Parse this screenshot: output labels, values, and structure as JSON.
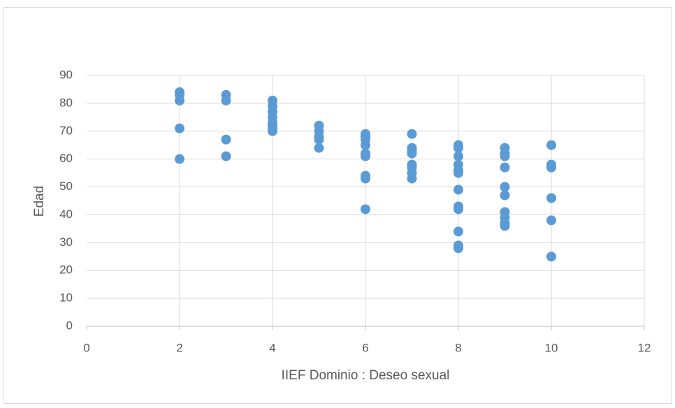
{
  "chart_data": {
    "type": "scatter",
    "xlabel": "IIEF Dominio : Deseo sexual",
    "ylabel": "Edad",
    "x": [
      2,
      2,
      2,
      2,
      2,
      3,
      3,
      3,
      3,
      4,
      4,
      4,
      4,
      4,
      4,
      4,
      4,
      5,
      5,
      5,
      5,
      5,
      6,
      6,
      6,
      6,
      6,
      6,
      6,
      6,
      6,
      7,
      7,
      7,
      7,
      7,
      7,
      7,
      7,
      8,
      8,
      8,
      8,
      8,
      8,
      8,
      8,
      8,
      8,
      8,
      8,
      9,
      9,
      9,
      9,
      9,
      9,
      9,
      9,
      9,
      9,
      10,
      10,
      10,
      10,
      10,
      10
    ],
    "values": [
      84,
      83,
      81,
      71,
      60,
      83,
      81,
      67,
      61,
      81,
      79,
      77,
      75,
      73,
      72,
      71,
      70,
      72,
      70,
      68,
      67,
      64,
      69,
      68,
      67,
      65,
      62,
      61,
      54,
      53,
      42,
      69,
      64,
      63,
      62,
      58,
      57,
      55,
      53,
      65,
      64,
      61,
      58,
      56,
      55,
      49,
      43,
      42,
      34,
      29,
      28,
      64,
      62,
      61,
      57,
      50,
      47,
      41,
      39,
      37,
      36,
      65,
      58,
      57,
      46,
      38,
      25
    ],
    "color": "#5b9bd5",
    "xlim": [
      0,
      12
    ],
    "xticks": [
      0,
      2,
      4,
      6,
      8,
      10,
      12
    ],
    "ylim": [
      0,
      90
    ],
    "yticks": [
      0,
      10,
      20,
      30,
      40,
      50,
      60,
      70,
      80,
      90
    ],
    "grid": true
  }
}
